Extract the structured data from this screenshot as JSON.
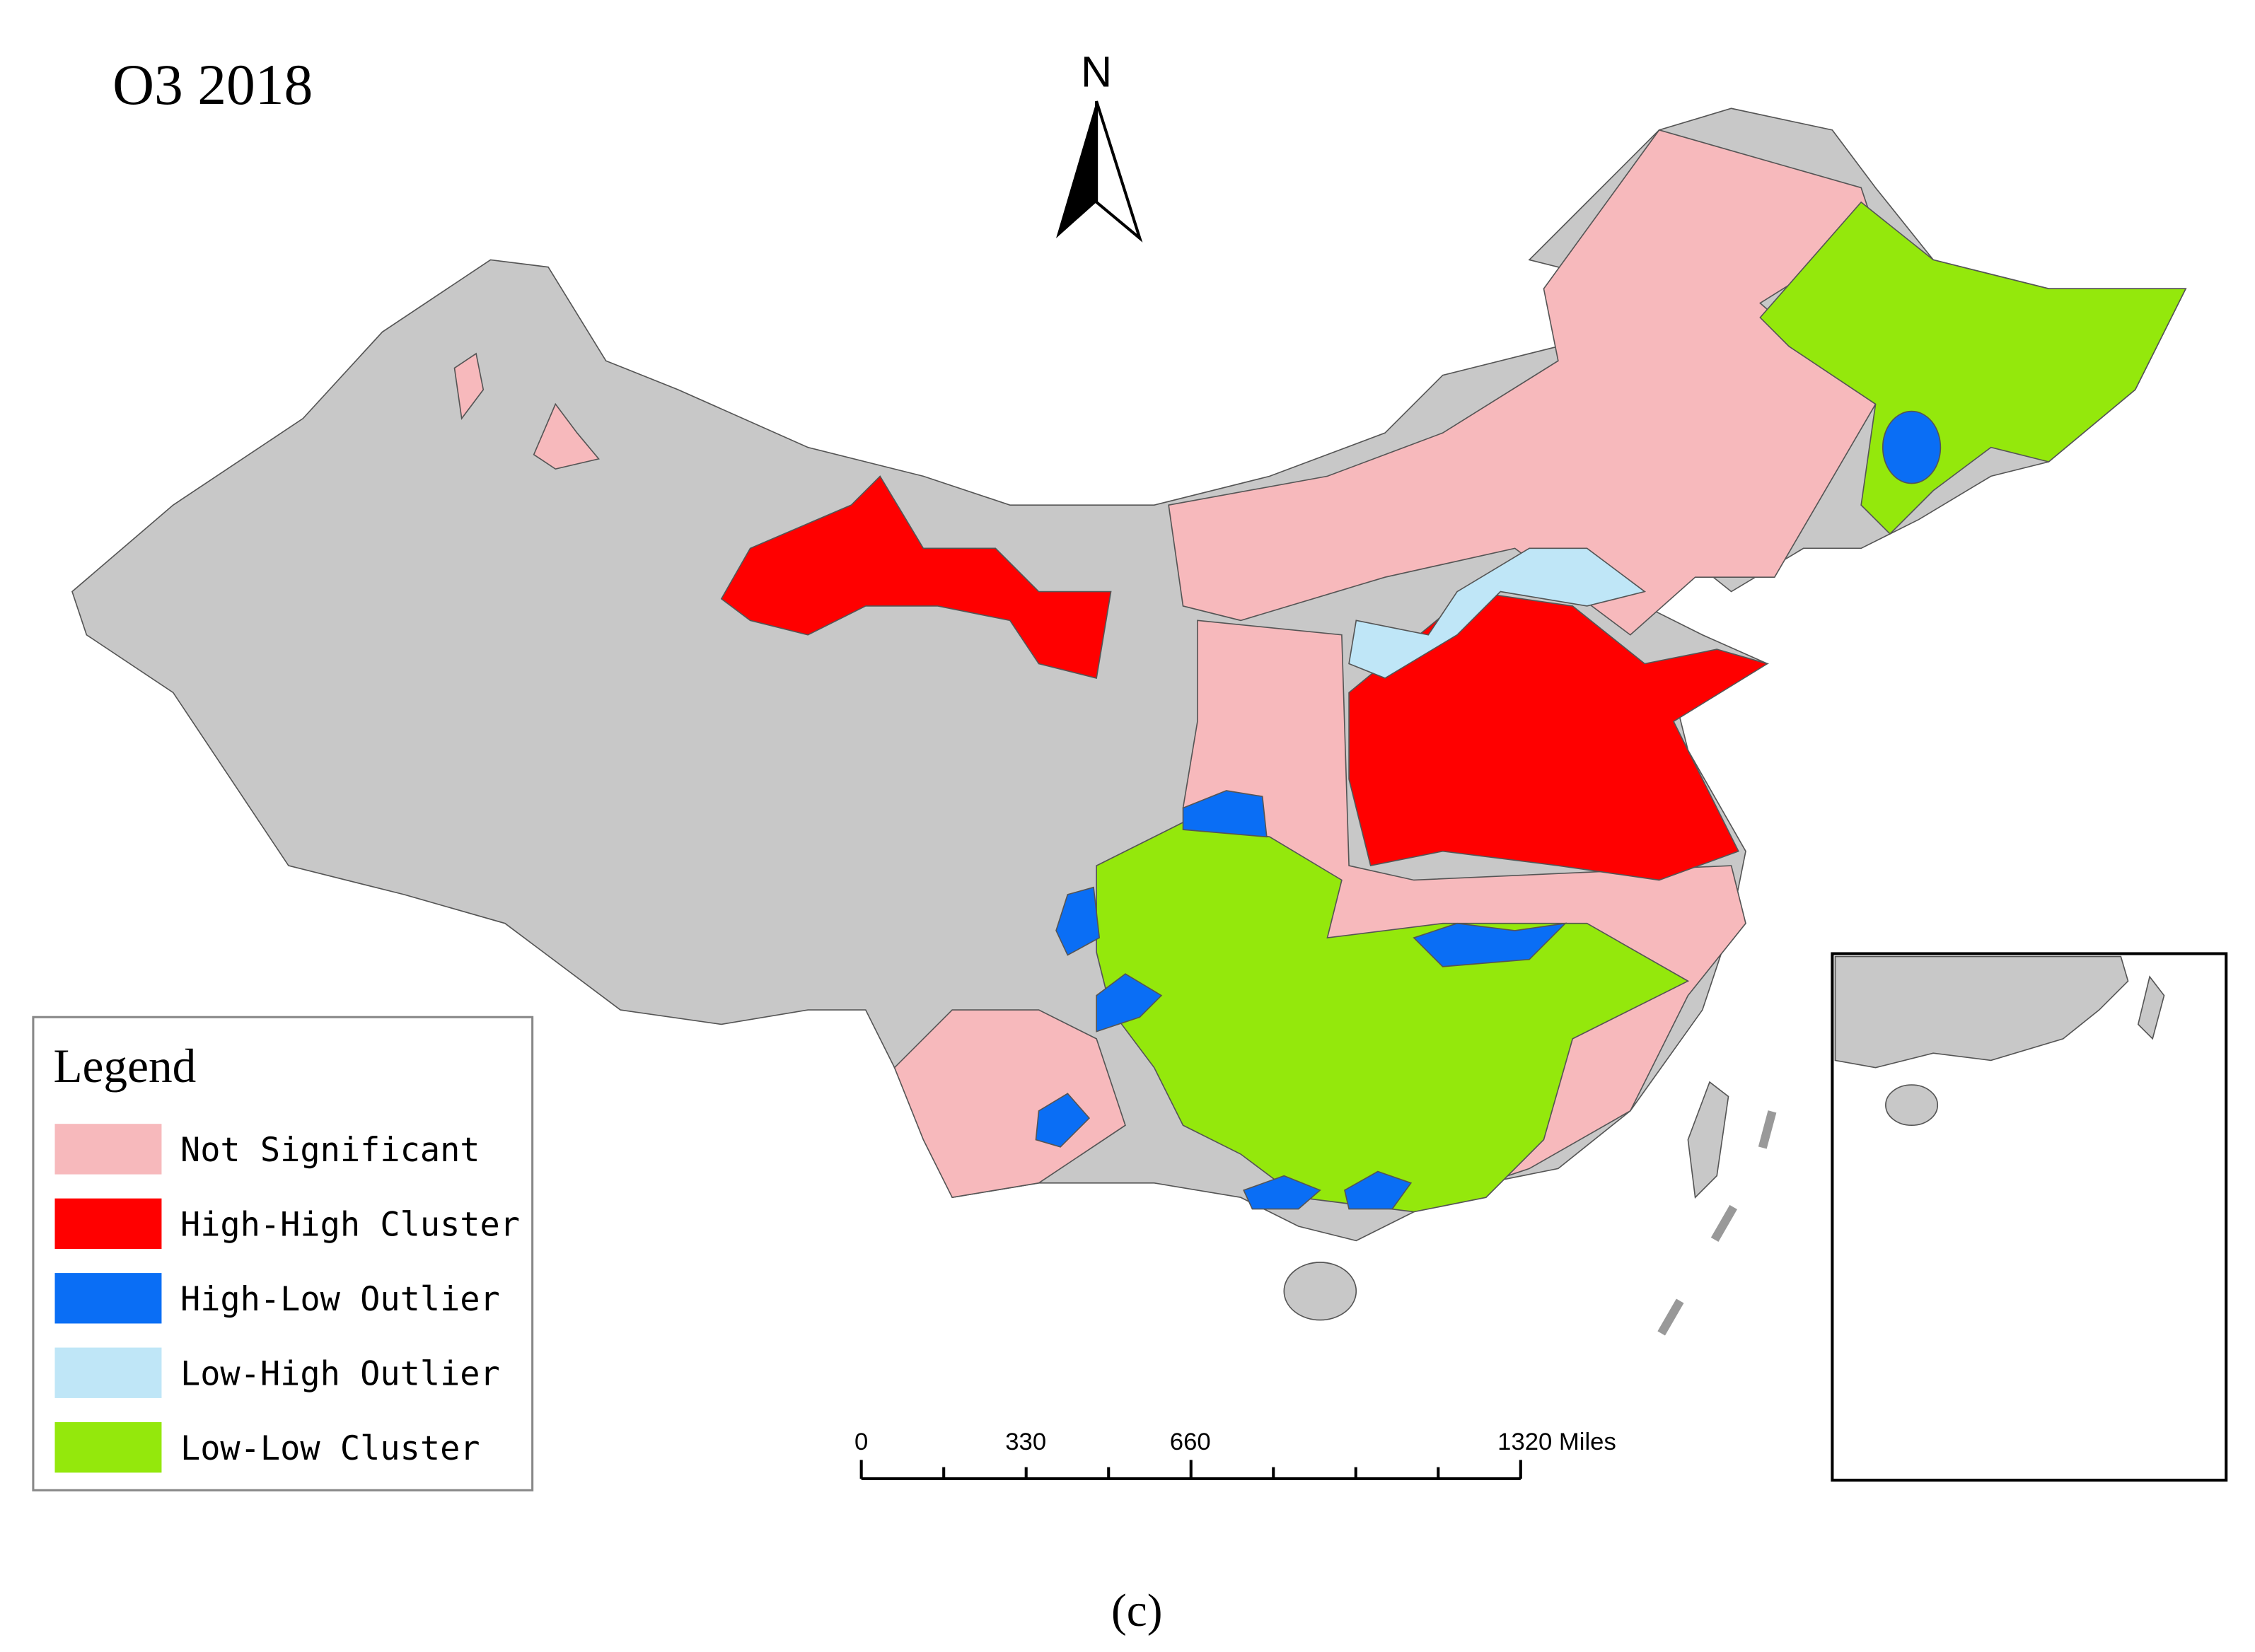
{
  "title": "O3 2018",
  "north_arrow": {
    "label": "N"
  },
  "legend": {
    "title": "Legend",
    "items": [
      {
        "label": "Not Significant",
        "color": "#f7b9bc"
      },
      {
        "label": "High-High Cluster",
        "color": "#ff0000"
      },
      {
        "label": "High-Low Outlier",
        "color": "#0a6ef5"
      },
      {
        "label": "Low-High Outlier",
        "color": "#bfe6f7"
      },
      {
        "label": "Low-Low Cluster",
        "color": "#94e80c"
      }
    ]
  },
  "scale_bar": {
    "labels": [
      "0",
      "330",
      "660",
      "1320 Miles"
    ]
  },
  "caption": "(c)"
}
